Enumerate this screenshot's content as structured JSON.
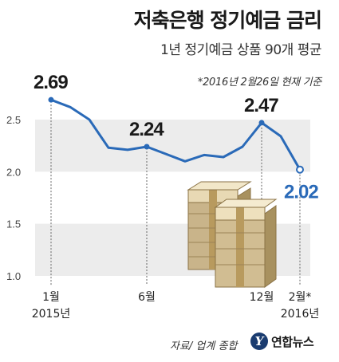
{
  "header": {
    "title": "저축은행 정기예금 금리",
    "subtitle": "1년 정기예금 상품 90개 평균",
    "note": "*2016년 2월26일 현재 기준"
  },
  "footer": {
    "source": "자료/ 업계 종합",
    "logo_mark": "Y",
    "logo_text": "연합뉴스"
  },
  "colors": {
    "line": "#2a6ab8",
    "band": "#ececec",
    "label": "#1a1a1a",
    "end_label": "#2a6ab8"
  },
  "chart_data": {
    "type": "line",
    "title": "저축은행 정기예금 금리",
    "subtitle": "1년 정기예금 상품 90개 평균",
    "ylim": [
      1.0,
      2.7
    ],
    "yticks": [
      "1.0",
      "1.5",
      "2.0",
      "2.5"
    ],
    "x": [
      "2015-01",
      "2015-02",
      "2015-03",
      "2015-04",
      "2015-05",
      "2015-06",
      "2015-07",
      "2015-08",
      "2015-09",
      "2015-10",
      "2015-11",
      "2015-12",
      "2016-01",
      "2016-02"
    ],
    "xtick_labels": [
      {
        "month": "1월",
        "year": "2015년",
        "index": 0
      },
      {
        "month": "6월",
        "year": "",
        "index": 5
      },
      {
        "month": "12월",
        "year": "",
        "index": 11
      },
      {
        "month": "2월*",
        "year": "2016년",
        "index": 13
      }
    ],
    "series": [
      {
        "values": [
          2.69,
          2.62,
          2.5,
          2.23,
          2.21,
          2.24,
          2.17,
          2.1,
          2.16,
          2.14,
          2.24,
          2.47,
          2.34,
          2.02
        ]
      }
    ],
    "data_labels": [
      {
        "index": 0,
        "text": "2.69"
      },
      {
        "index": 5,
        "text": "2.24"
      },
      {
        "index": 11,
        "text": "2.47"
      },
      {
        "index": 13,
        "text": "2.02"
      }
    ],
    "grid": "alternating-bands"
  }
}
